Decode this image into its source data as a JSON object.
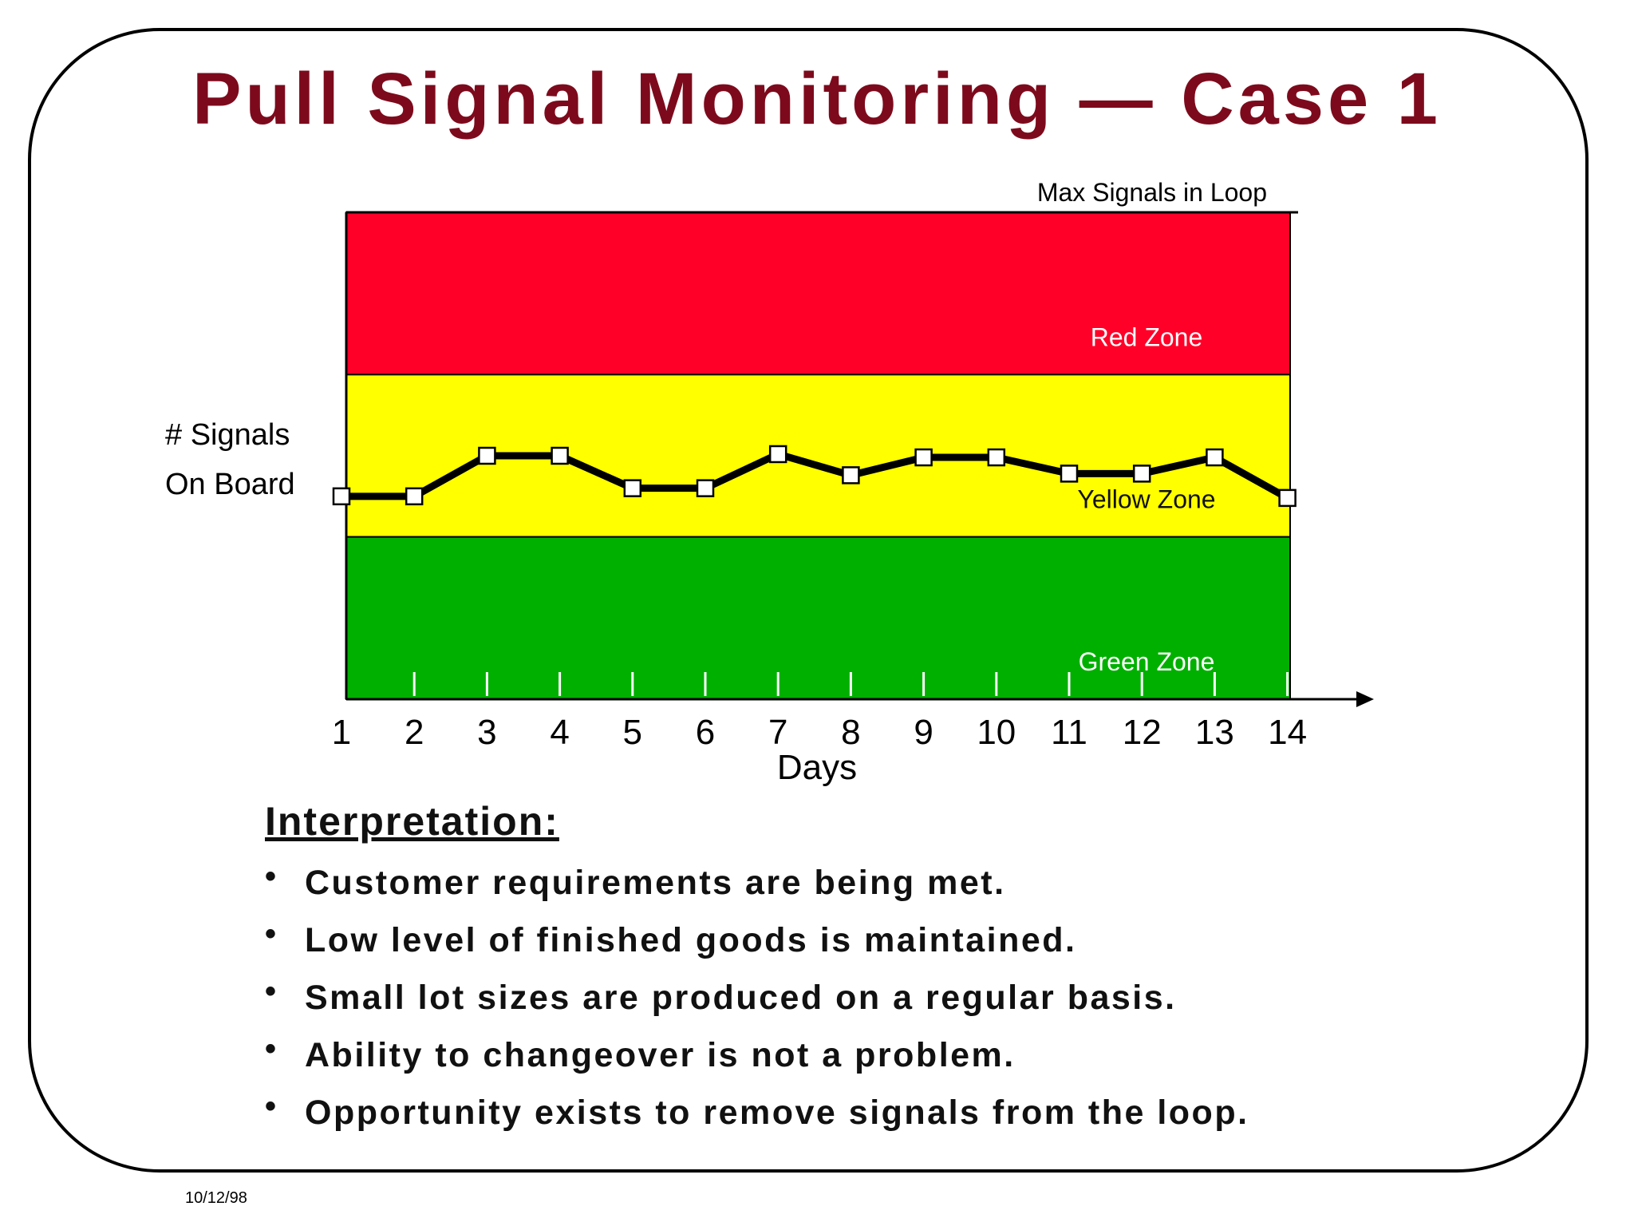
{
  "slide": {
    "title": "Pull Signal Monitoring — Case 1",
    "date": "10/12/98"
  },
  "chart_data": {
    "type": "line",
    "title": "",
    "top_line_label": "Max Signals in Loop",
    "ylabel_lines": [
      "# Signals",
      "On Board"
    ],
    "xlabel": "Days",
    "x": [
      1,
      2,
      3,
      4,
      5,
      6,
      7,
      8,
      9,
      10,
      11,
      12,
      13,
      14
    ],
    "series": [
      {
        "values": [
          1.25,
          1.25,
          1.5,
          1.5,
          1.3,
          1.3,
          1.51,
          1.38,
          1.49,
          1.49,
          1.39,
          1.39,
          1.49,
          1.24
        ]
      }
    ],
    "ylim": [
      0,
      3
    ],
    "zones": [
      {
        "label": "Red Zone",
        "from": 2,
        "to": 3,
        "color": "#ff0028",
        "text_color": "#ffffff"
      },
      {
        "label": "Yellow Zone",
        "from": 1,
        "to": 2,
        "color": "#ffff00",
        "text_color": "#111111"
      },
      {
        "label": "Green Zone",
        "from": 0,
        "to": 1,
        "color": "#00b000",
        "text_color": "#ffffff"
      }
    ],
    "line_color": "#000000",
    "marker": "square"
  },
  "interpretation": {
    "heading": "Interpretation:",
    "items": [
      "Customer requirements are being met.",
      "Low level of finished goods is maintained.",
      "Small lot sizes are produced on a regular basis.",
      "Ability to changeover is not a problem.",
      "Opportunity exists to remove signals from the loop."
    ]
  }
}
